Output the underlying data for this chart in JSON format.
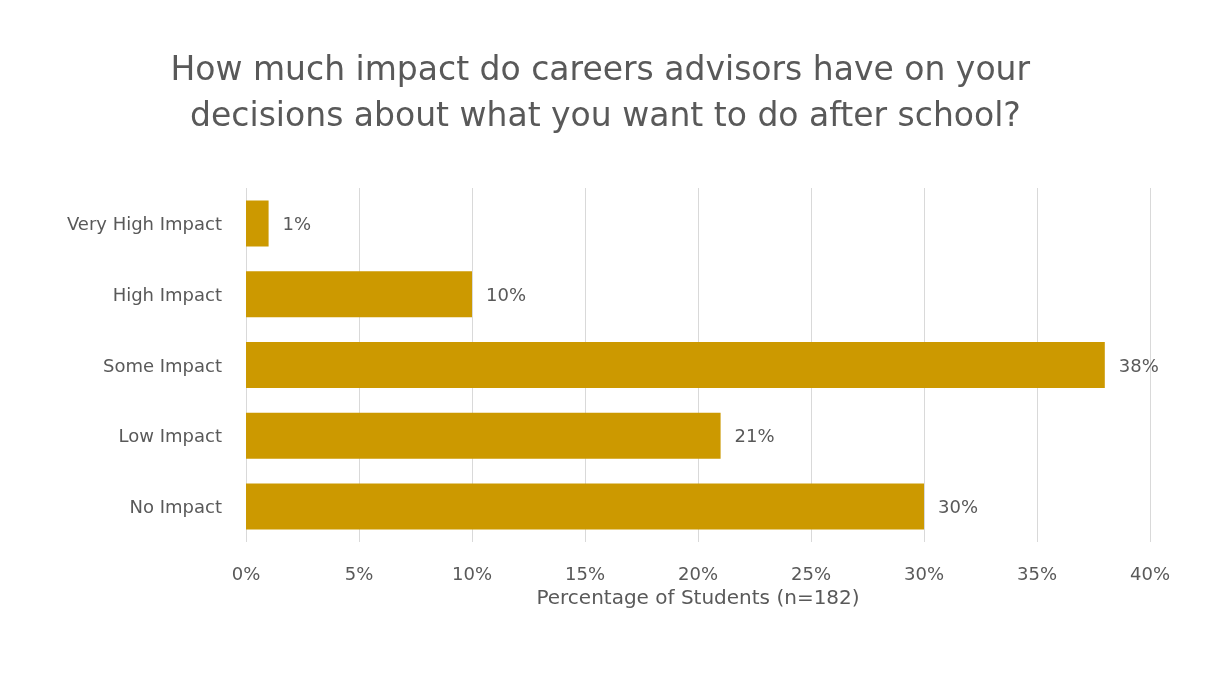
{
  "chart_data": {
    "type": "bar",
    "orientation": "horizontal",
    "title": "How much impact do careers advisors have on your decisions about what you want to do after school?",
    "xlabel": "Percentage of Students (n=182)",
    "categories": [
      "Very High Impact",
      "High Impact",
      "Some Impact",
      "Low Impact",
      "No Impact"
    ],
    "values": [
      1,
      10,
      38,
      21,
      30
    ],
    "value_labels": [
      "1%",
      "10%",
      "38%",
      "21%",
      "30%"
    ],
    "color": "#cc9900",
    "xlim": [
      0,
      40
    ],
    "xticks": [
      {
        "value": 0,
        "label": "0%"
      },
      {
        "value": 5,
        "label": "5%"
      },
      {
        "value": 10,
        "label": "10%"
      },
      {
        "value": 15,
        "label": "15%"
      },
      {
        "value": 20,
        "label": "20%"
      },
      {
        "value": 25,
        "label": "25%"
      },
      {
        "value": 30,
        "label": "30%"
      },
      {
        "value": 35,
        "label": "35%"
      },
      {
        "value": 40,
        "label": "40%"
      }
    ],
    "grid": "x"
  }
}
